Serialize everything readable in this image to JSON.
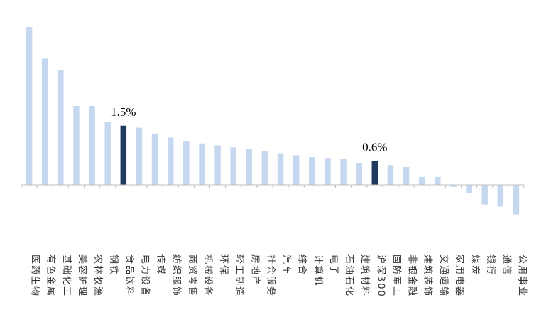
{
  "chart_data": {
    "type": "bar",
    "title": "",
    "xlabel": "",
    "ylabel": "",
    "categories": [
      "医药生物",
      "有色金属",
      "基础化工",
      "美容护理",
      "农林牧渔",
      "钢铁",
      "食品饮料",
      "电力设备",
      "传媒",
      "纺织服饰",
      "商贸零售",
      "机械设备",
      "环保",
      "轻工制造",
      "房地产",
      "社会服务",
      "汽车",
      "综合",
      "计算机",
      "电子",
      "石油石化",
      "建筑材料",
      "沪深300",
      "国防军工",
      "非银金融",
      "建筑装饰",
      "交通运输",
      "家用电器",
      "煤炭",
      "银行",
      "通信",
      "公用事业"
    ],
    "values": [
      4.0,
      3.2,
      2.9,
      2.0,
      2.0,
      1.6,
      1.5,
      1.45,
      1.3,
      1.2,
      1.1,
      1.05,
      1.0,
      0.95,
      0.9,
      0.85,
      0.8,
      0.75,
      0.7,
      0.68,
      0.65,
      0.55,
      0.6,
      0.5,
      0.45,
      0.2,
      0.2,
      -0.05,
      -0.2,
      -0.5,
      -0.55,
      -0.75
    ],
    "highlighted": [
      "食品饮料",
      "沪深300"
    ],
    "data_labels": [
      {
        "category": "食品饮料",
        "text": "1.5%"
      },
      {
        "category": "沪深300",
        "text": "0.6%"
      }
    ],
    "ylim": [
      -1.0,
      4.0
    ],
    "grid": false,
    "legend": "none",
    "colors": {
      "default": "#c5d8ef",
      "highlight": "#1f3a5f",
      "axis": "#bfbfbf"
    }
  }
}
